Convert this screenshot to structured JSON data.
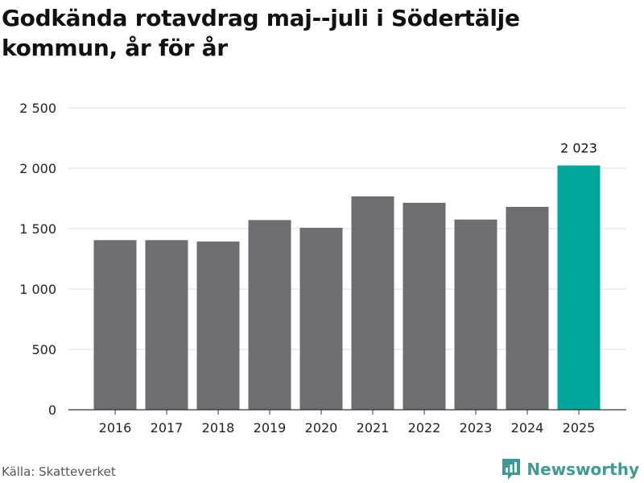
{
  "header": {
    "title": "Godkända rotavdrag maj--juli i Södertälje kommun, år för år"
  },
  "footer": {
    "source": "Källa: Skatteverket",
    "brand": "Newsworthy",
    "brand_icon": "newsworthy-logo-icon"
  },
  "colors": {
    "bar": "#6e6d72",
    "highlight": "#00a59b",
    "grid": "#dddddd",
    "axis": "#333333",
    "brand": "#3d9b95"
  },
  "chart_data": {
    "type": "bar",
    "title": "Godkända rotavdrag maj--juli i Södertälje kommun, år för år",
    "xlabel": "",
    "ylabel": "",
    "categories": [
      "2016",
      "2017",
      "2018",
      "2019",
      "2020",
      "2021",
      "2022",
      "2023",
      "2024",
      "2025"
    ],
    "values": [
      1405,
      1405,
      1393,
      1571,
      1507,
      1767,
      1714,
      1575,
      1680,
      2023
    ],
    "ylim": [
      0,
      2500
    ],
    "yticks": [
      0,
      500,
      1000,
      1500,
      2000,
      2500
    ],
    "ytick_labels": [
      "0",
      "500",
      "1 000",
      "1 500",
      "2 000",
      "2 500"
    ],
    "highlight_category": "2025",
    "data_labels": [
      {
        "category": "2025",
        "text": "2 023"
      }
    ],
    "grid": true,
    "legend": "none"
  }
}
